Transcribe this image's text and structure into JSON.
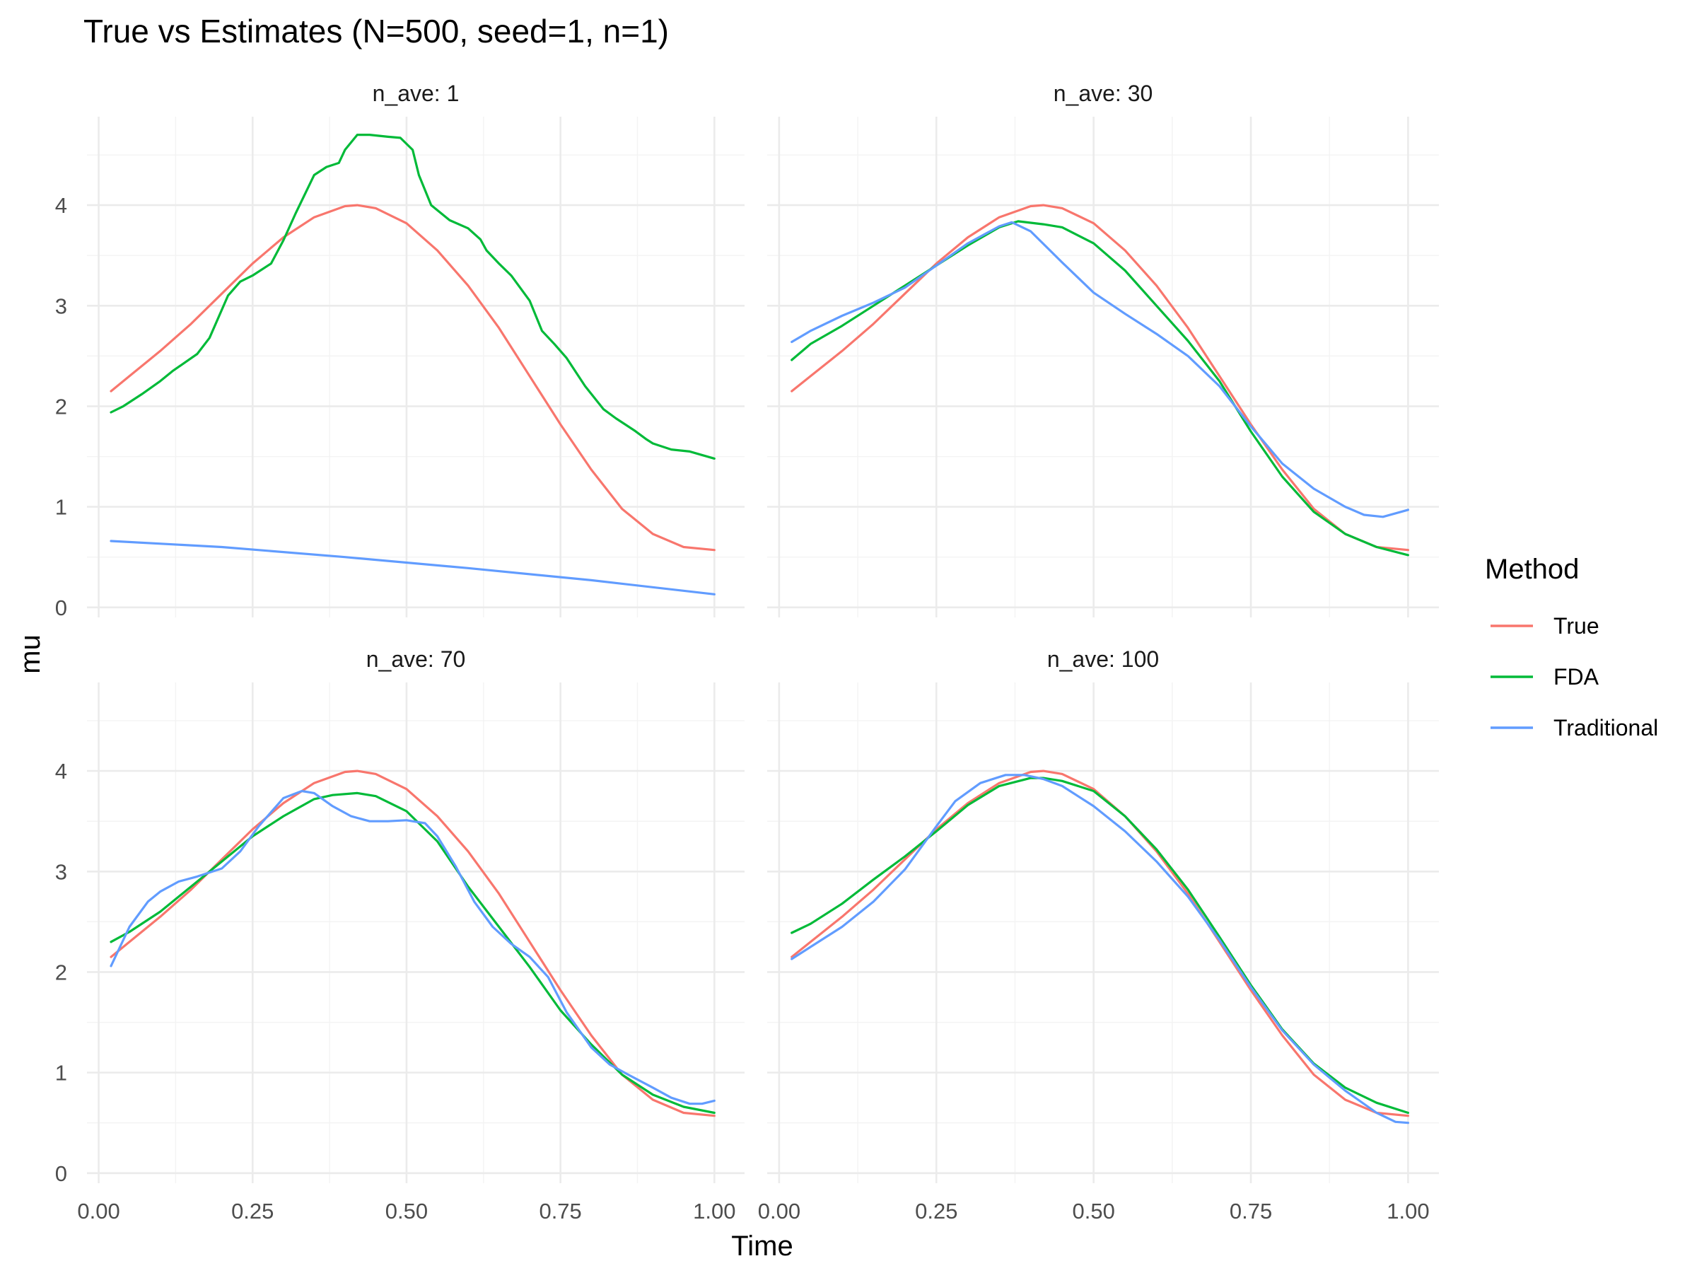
{
  "chart_data": {
    "type": "line",
    "title": "True vs Estimates (N=500, seed=1, n=1)",
    "xlabel": "Time",
    "ylabel": "mu",
    "xlim": [
      0,
      1
    ],
    "ylim": [
      0,
      4.8
    ],
    "x_ticks": [
      "0.00",
      "0.25",
      "0.50",
      "0.75",
      "1.00"
    ],
    "y_ticks": [
      "0",
      "1",
      "2",
      "3",
      "4"
    ],
    "grid": true,
    "legend": {
      "title": "Method",
      "position": "right",
      "entries": [
        "True",
        "FDA",
        "Traditional"
      ]
    },
    "colors": {
      "True": "#F8766D",
      "FDA": "#00BA38",
      "Traditional": "#619CFF"
    },
    "panels": [
      {
        "label": "n_ave: 1",
        "series": [
          {
            "name": "True",
            "x": [
              0.02,
              0.05,
              0.1,
              0.15,
              0.2,
              0.25,
              0.3,
              0.35,
              0.4,
              0.42,
              0.45,
              0.5,
              0.55,
              0.6,
              0.65,
              0.7,
              0.75,
              0.8,
              0.85,
              0.9,
              0.95,
              1.0
            ],
            "y": [
              2.15,
              2.3,
              2.55,
              2.82,
              3.12,
              3.42,
              3.68,
              3.88,
              3.99,
              4.0,
              3.97,
              3.82,
              3.55,
              3.2,
              2.78,
              2.3,
              1.82,
              1.37,
              0.98,
              0.73,
              0.6,
              0.57
            ]
          },
          {
            "name": "FDA",
            "x": [
              0.02,
              0.04,
              0.07,
              0.1,
              0.12,
              0.16,
              0.18,
              0.21,
              0.23,
              0.25,
              0.28,
              0.3,
              0.32,
              0.35,
              0.37,
              0.39,
              0.4,
              0.42,
              0.44,
              0.47,
              0.49,
              0.51,
              0.52,
              0.54,
              0.57,
              0.6,
              0.62,
              0.63,
              0.65,
              0.67,
              0.7,
              0.72,
              0.74,
              0.76,
              0.79,
              0.82,
              0.84,
              0.87,
              0.89,
              0.9,
              0.93,
              0.96,
              1.0
            ],
            "y": [
              1.94,
              2.0,
              2.12,
              2.25,
              2.35,
              2.52,
              2.68,
              3.1,
              3.24,
              3.3,
              3.42,
              3.65,
              3.92,
              4.3,
              4.38,
              4.42,
              4.55,
              4.7,
              4.7,
              4.68,
              4.67,
              4.55,
              4.3,
              4.0,
              3.85,
              3.77,
              3.66,
              3.55,
              3.42,
              3.3,
              3.05,
              2.75,
              2.62,
              2.48,
              2.2,
              1.97,
              1.88,
              1.76,
              1.67,
              1.63,
              1.57,
              1.55,
              1.48
            ]
          },
          {
            "name": "Traditional",
            "x": [
              0.02,
              0.2,
              0.4,
              0.6,
              0.8,
              1.0
            ],
            "y": [
              0.66,
              0.6,
              0.5,
              0.39,
              0.27,
              0.13
            ]
          }
        ]
      },
      {
        "label": "n_ave: 30",
        "series": [
          {
            "name": "True",
            "x": [
              0.02,
              0.05,
              0.1,
              0.15,
              0.2,
              0.25,
              0.3,
              0.35,
              0.4,
              0.42,
              0.45,
              0.5,
              0.55,
              0.6,
              0.65,
              0.7,
              0.75,
              0.8,
              0.85,
              0.9,
              0.95,
              1.0
            ],
            "y": [
              2.15,
              2.3,
              2.55,
              2.82,
              3.12,
              3.42,
              3.68,
              3.88,
              3.99,
              4.0,
              3.97,
              3.82,
              3.55,
              3.2,
              2.78,
              2.3,
              1.82,
              1.37,
              0.98,
              0.73,
              0.6,
              0.57
            ]
          },
          {
            "name": "FDA",
            "x": [
              0.02,
              0.05,
              0.1,
              0.15,
              0.2,
              0.25,
              0.3,
              0.35,
              0.38,
              0.42,
              0.45,
              0.5,
              0.55,
              0.6,
              0.65,
              0.7,
              0.75,
              0.8,
              0.85,
              0.9,
              0.95,
              1.0
            ],
            "y": [
              2.46,
              2.62,
              2.8,
              3.0,
              3.2,
              3.4,
              3.6,
              3.78,
              3.84,
              3.81,
              3.78,
              3.62,
              3.35,
              3.0,
              2.65,
              2.25,
              1.75,
              1.3,
              0.95,
              0.73,
              0.6,
              0.52
            ]
          },
          {
            "name": "Traditional",
            "x": [
              0.02,
              0.05,
              0.1,
              0.15,
              0.2,
              0.25,
              0.3,
              0.35,
              0.37,
              0.4,
              0.45,
              0.5,
              0.55,
              0.6,
              0.65,
              0.7,
              0.75,
              0.8,
              0.85,
              0.9,
              0.93,
              0.96,
              1.0
            ],
            "y": [
              2.64,
              2.75,
              2.9,
              3.03,
              3.18,
              3.4,
              3.62,
              3.79,
              3.83,
              3.74,
              3.43,
              3.13,
              2.92,
              2.72,
              2.5,
              2.2,
              1.8,
              1.43,
              1.18,
              1.0,
              0.92,
              0.9,
              0.97
            ]
          }
        ]
      },
      {
        "label": "n_ave: 70",
        "series": [
          {
            "name": "True",
            "x": [
              0.02,
              0.05,
              0.1,
              0.15,
              0.2,
              0.25,
              0.3,
              0.35,
              0.4,
              0.42,
              0.45,
              0.5,
              0.55,
              0.6,
              0.65,
              0.7,
              0.75,
              0.8,
              0.85,
              0.9,
              0.95,
              1.0
            ],
            "y": [
              2.15,
              2.3,
              2.55,
              2.82,
              3.12,
              3.42,
              3.68,
              3.88,
              3.99,
              4.0,
              3.97,
              3.82,
              3.55,
              3.2,
              2.78,
              2.3,
              1.82,
              1.37,
              0.98,
              0.73,
              0.6,
              0.57
            ]
          },
          {
            "name": "FDA",
            "x": [
              0.02,
              0.05,
              0.1,
              0.15,
              0.2,
              0.25,
              0.3,
              0.35,
              0.38,
              0.42,
              0.45,
              0.5,
              0.55,
              0.6,
              0.65,
              0.7,
              0.75,
              0.8,
              0.85,
              0.9,
              0.95,
              1.0
            ],
            "y": [
              2.3,
              2.4,
              2.6,
              2.85,
              3.1,
              3.35,
              3.55,
              3.72,
              3.76,
              3.78,
              3.75,
              3.6,
              3.3,
              2.85,
              2.45,
              2.05,
              1.62,
              1.28,
              0.98,
              0.78,
              0.66,
              0.6
            ]
          },
          {
            "name": "Traditional",
            "x": [
              0.02,
              0.05,
              0.08,
              0.1,
              0.13,
              0.16,
              0.2,
              0.23,
              0.26,
              0.3,
              0.33,
              0.35,
              0.38,
              0.41,
              0.44,
              0.47,
              0.5,
              0.53,
              0.55,
              0.58,
              0.61,
              0.64,
              0.67,
              0.7,
              0.73,
              0.76,
              0.8,
              0.83,
              0.86,
              0.9,
              0.93,
              0.96,
              0.98,
              1.0
            ],
            "y": [
              2.06,
              2.45,
              2.7,
              2.8,
              2.9,
              2.95,
              3.03,
              3.2,
              3.45,
              3.73,
              3.8,
              3.78,
              3.65,
              3.55,
              3.5,
              3.5,
              3.51,
              3.48,
              3.35,
              3.05,
              2.7,
              2.45,
              2.28,
              2.15,
              1.95,
              1.6,
              1.25,
              1.08,
              0.98,
              0.85,
              0.75,
              0.69,
              0.69,
              0.72
            ]
          }
        ]
      },
      {
        "label": "n_ave: 100",
        "series": [
          {
            "name": "True",
            "x": [
              0.02,
              0.05,
              0.1,
              0.15,
              0.2,
              0.25,
              0.3,
              0.35,
              0.4,
              0.42,
              0.45,
              0.5,
              0.55,
              0.6,
              0.65,
              0.7,
              0.75,
              0.8,
              0.85,
              0.9,
              0.95,
              1.0
            ],
            "y": [
              2.15,
              2.3,
              2.55,
              2.82,
              3.12,
              3.42,
              3.68,
              3.88,
              3.99,
              4.0,
              3.97,
              3.82,
              3.55,
              3.2,
              2.78,
              2.3,
              1.82,
              1.37,
              0.98,
              0.73,
              0.6,
              0.57
            ]
          },
          {
            "name": "FDA",
            "x": [
              0.02,
              0.05,
              0.1,
              0.15,
              0.2,
              0.25,
              0.3,
              0.35,
              0.4,
              0.42,
              0.45,
              0.5,
              0.55,
              0.6,
              0.65,
              0.7,
              0.75,
              0.8,
              0.85,
              0.9,
              0.95,
              1.0
            ],
            "y": [
              2.39,
              2.48,
              2.68,
              2.92,
              3.15,
              3.4,
              3.66,
              3.85,
              3.93,
              3.93,
              3.9,
              3.8,
              3.55,
              3.22,
              2.82,
              2.35,
              1.87,
              1.43,
              1.09,
              0.85,
              0.7,
              0.6
            ]
          },
          {
            "name": "Traditional",
            "x": [
              0.02,
              0.05,
              0.1,
              0.15,
              0.2,
              0.25,
              0.28,
              0.32,
              0.36,
              0.39,
              0.42,
              0.45,
              0.5,
              0.55,
              0.6,
              0.65,
              0.7,
              0.75,
              0.8,
              0.85,
              0.9,
              0.95,
              0.98,
              1.0
            ],
            "y": [
              2.13,
              2.25,
              2.45,
              2.7,
              3.02,
              3.45,
              3.7,
              3.88,
              3.96,
              3.96,
              3.92,
              3.85,
              3.65,
              3.4,
              3.1,
              2.75,
              2.32,
              1.85,
              1.42,
              1.08,
              0.82,
              0.6,
              0.51,
              0.5
            ]
          }
        ]
      }
    ]
  }
}
